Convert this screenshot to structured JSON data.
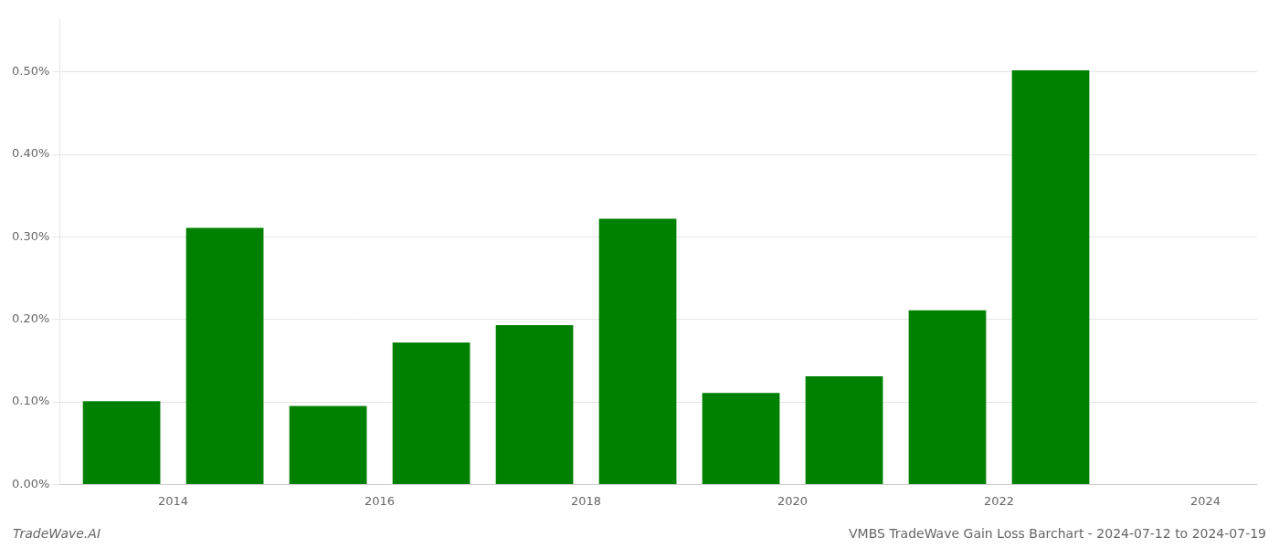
{
  "chart_data": {
    "type": "bar",
    "title": "VMBS TradeWave Gain Loss Barchart - 2024-07-12 to 2024-07-19",
    "annotations": [
      "TradeWave.AI"
    ],
    "x": [
      2014,
      2015,
      2016,
      2017,
      2018,
      2019,
      2020,
      2021,
      2022,
      2023
    ],
    "values": [
      0.00101,
      0.00311,
      0.00095,
      0.00172,
      0.00193,
      0.00322,
      0.00111,
      0.00131,
      0.00211,
      0.00502
    ],
    "color": "#008000",
    "xlim": [
      2013.4,
      2025.0
    ],
    "xticks": [
      {
        "value": 2014.5,
        "label": "2014"
      },
      {
        "value": 2016.5,
        "label": "2016"
      },
      {
        "value": 2018.5,
        "label": "2018"
      },
      {
        "value": 2020.5,
        "label": "2020"
      },
      {
        "value": 2022.5,
        "label": "2022"
      },
      {
        "value": 2024.5,
        "label": "2024"
      }
    ],
    "ylim": [
      0,
      0.00565
    ],
    "yticks": [
      {
        "value": 0.0,
        "label": "0.00%"
      },
      {
        "value": 0.001,
        "label": "0.10%"
      },
      {
        "value": 0.002,
        "label": "0.20%"
      },
      {
        "value": 0.003,
        "label": "0.30%"
      },
      {
        "value": 0.004,
        "label": "0.40%"
      },
      {
        "value": 0.005,
        "label": "0.50%"
      }
    ],
    "grid": true
  }
}
